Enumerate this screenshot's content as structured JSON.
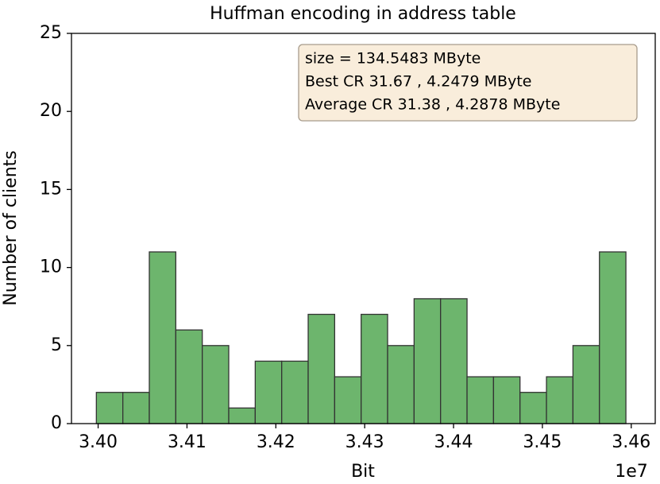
{
  "chart_data": {
    "type": "histogram",
    "title": "Huffman encoding in address table",
    "xlabel": "Bit",
    "ylabel": "Number of clients",
    "x_offset_label": "1e7",
    "annotation": [
      "size  = 134.5483 MByte",
      "Best CR   31.67 ,  4.2479 MByte",
      "Average CR   31.38 ,  4.2878 MByte"
    ],
    "bins": [
      33998000,
      34027800,
      34057600,
      34087400,
      34117200,
      34147000,
      34176800,
      34206600,
      34236400,
      34266200,
      34296000,
      34325800,
      34355600,
      34385400,
      34415200,
      34445000,
      34474800,
      34504600,
      34534400,
      34564200,
      34594000
    ],
    "counts": [
      2,
      2,
      11,
      6,
      5,
      1,
      4,
      4,
      7,
      3,
      7,
      5,
      8,
      8,
      3,
      3,
      2,
      3,
      5,
      11
    ],
    "color": "#6db56d",
    "edgecolor": "#333333",
    "xlim": [
      33970000,
      34627000
    ],
    "xticks": [
      {
        "value": 34000000,
        "label": "3.40"
      },
      {
        "value": 34100000,
        "label": "3.41"
      },
      {
        "value": 34200000,
        "label": "3.42"
      },
      {
        "value": 34300000,
        "label": "3.43"
      },
      {
        "value": 34400000,
        "label": "3.44"
      },
      {
        "value": 34500000,
        "label": "3.45"
      },
      {
        "value": 34600000,
        "label": "3.46"
      }
    ],
    "ylim": [
      0,
      25
    ],
    "yticks": [
      0,
      5,
      10,
      15,
      20,
      25
    ],
    "grid": false
  }
}
